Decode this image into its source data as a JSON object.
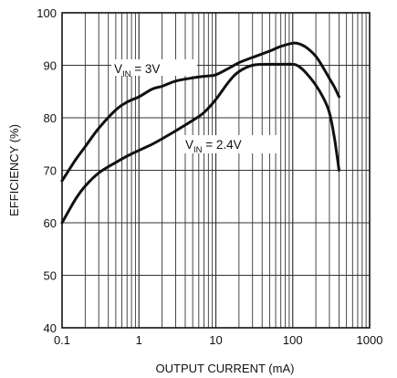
{
  "chart_data": {
    "type": "line",
    "title": "",
    "xlabel": "OUTPUT CURRENT (mA)",
    "ylabel": "EFFICIENCY (%)",
    "xscale": "log",
    "xlim": [
      0.1,
      1000
    ],
    "ylim": [
      40,
      100
    ],
    "xticks": [
      0.1,
      1,
      10,
      100,
      1000
    ],
    "xtick_labels": [
      "0.1",
      "1",
      "10",
      "100",
      "1000"
    ],
    "yticks": [
      40,
      50,
      60,
      70,
      80,
      90,
      100
    ],
    "ytick_labels": [
      "40",
      "50",
      "60",
      "70",
      "80",
      "90",
      "100"
    ],
    "grid": true,
    "legend": "none",
    "series": [
      {
        "name": "VIN = 3V",
        "x": [
          0.1,
          0.15,
          0.2,
          0.3,
          0.5,
          0.7,
          1,
          1.5,
          2,
          3,
          5,
          7,
          10,
          15,
          20,
          30,
          50,
          70,
          100,
          120,
          150,
          200,
          250,
          300,
          350,
          400
        ],
        "y": [
          68,
          72,
          74.5,
          78,
          81.5,
          83,
          84,
          85.5,
          86,
          87,
          87.6,
          87.9,
          88.2,
          89.5,
          90.5,
          91.5,
          92.7,
          93.6,
          94.2,
          94.1,
          93.4,
          91.7,
          89.5,
          87.5,
          85.8,
          84
        ]
      },
      {
        "name": "VIN = 2.4V",
        "x": [
          0.1,
          0.15,
          0.2,
          0.3,
          0.5,
          0.7,
          1,
          1.5,
          2,
          3,
          5,
          7,
          10,
          15,
          20,
          30,
          50,
          70,
          100,
          120,
          150,
          200,
          250,
          300,
          350,
          400
        ],
        "y": [
          60,
          64.5,
          67,
          69.5,
          71.5,
          72.7,
          73.8,
          75,
          76,
          77.5,
          79.5,
          81,
          83.5,
          87,
          88.8,
          90,
          90.2,
          90.2,
          90.2,
          89.8,
          88.5,
          86.2,
          83.8,
          81,
          76,
          70
        ]
      }
    ],
    "annotations": [
      {
        "main": "V",
        "sub": "IN",
        "rest": " = 3V",
        "series": "VIN = 3V"
      },
      {
        "main": "V",
        "sub": "IN",
        "rest": " = 2.4V",
        "series": "VIN = 2.4V"
      }
    ]
  }
}
